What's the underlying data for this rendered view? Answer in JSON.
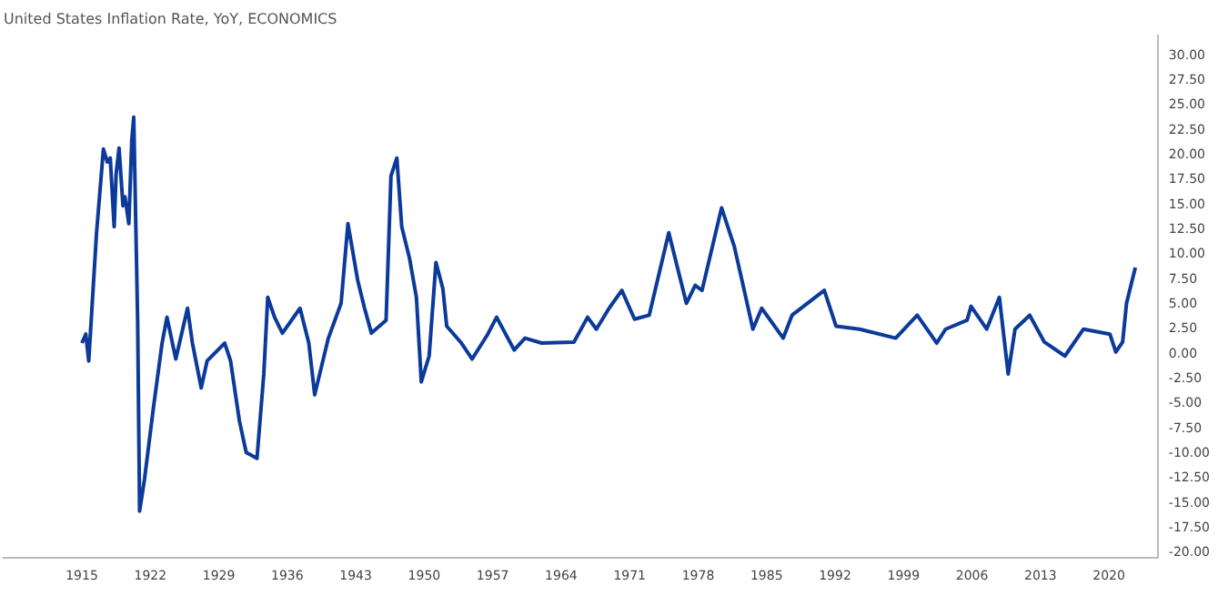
{
  "chart_data": {
    "type": "line",
    "title": "United States Inflation Rate, YoY, ECONOMICS",
    "x": [
      1915,
      1915.4,
      1915.7,
      1916.5,
      1917.2,
      1917.6,
      1917.9,
      1918.3,
      1918.5,
      1918.8,
      1919.2,
      1919.4,
      1919.8,
      1920.1,
      1920.3,
      1920.7,
      1920.9,
      1921.4,
      1922.3,
      1923.2,
      1923.7,
      1924.6,
      1925.8,
      1926.3,
      1927.2,
      1927.8,
      1929.6,
      1930.2,
      1931.1,
      1931.8,
      1932.9,
      1933.6,
      1934,
      1934.7,
      1935.5,
      1937.3,
      1938.2,
      1938.8,
      1940.2,
      1941.5,
      1942.2,
      1943.2,
      1943.9,
      1944.6,
      1946.1,
      1946.6,
      1947.2,
      1947.7,
      1948.5,
      1949.2,
      1949.7,
      1950.5,
      1951.2,
      1951.9,
      1952.3,
      1953.8,
      1954.9,
      1956.5,
      1957.4,
      1959.2,
      1960.3,
      1962,
      1965.3,
      1966.7,
      1967.6,
      1968.9,
      1970.2,
      1971.5,
      1973,
      1975,
      1976.8,
      1977.7,
      1978.4,
      1980.4,
      1981.7,
      1982.6,
      1983.6,
      1984.5,
      1986.7,
      1987.6,
      1990.9,
      1992.1,
      1994.5,
      1998.2,
      2000.4,
      2002.4,
      2003.3,
      2005.5,
      2005.9,
      2007.5,
      2008.8,
      2009.7,
      2010.4,
      2011.9,
      2013.4,
      2015.5,
      2017.4,
      2020.1,
      2020.7,
      2021.4,
      2021.8,
      2022.7
    ],
    "series": [
      {
        "color": "#0b3a9a",
        "values": [
          1.1,
          2,
          -0.7,
          12.2,
          20.6,
          19.3,
          19.7,
          12.8,
          18.1,
          20.7,
          14.9,
          15.8,
          13.1,
          21.5,
          23.8,
          3.4,
          -15.8,
          -12.6,
          -5.5,
          1.1,
          3.7,
          -0.5,
          4.6,
          1.1,
          -3.4,
          -0.7,
          1.1,
          -0.7,
          -6.7,
          -9.9,
          -10.5,
          -2,
          5.7,
          3.7,
          2.1,
          4.6,
          1.1,
          -4.1,
          1.6,
          5.1,
          13.1,
          7.4,
          4.6,
          2.1,
          3.4,
          17.9,
          19.7,
          12.8,
          9.6,
          5.7,
          -2.8,
          -0.2,
          9.2,
          6.6,
          2.8,
          1.1,
          -0.5,
          2,
          3.7,
          0.4,
          1.6,
          1.1,
          1.2,
          3.7,
          2.5,
          4.6,
          6.4,
          3.5,
          3.9,
          12.2,
          5.1,
          6.9,
          6.4,
          14.7,
          10.8,
          6.9,
          2.5,
          4.6,
          1.6,
          3.9,
          6.4,
          2.8,
          2.5,
          1.6,
          3.9,
          1.1,
          2.5,
          3.4,
          4.8,
          2.5,
          5.7,
          -2,
          2.5,
          3.9,
          1.2,
          -0.2,
          2.5,
          2,
          0.2,
          1.2,
          5.1,
          8.7
        ]
      }
    ],
    "xlim": [
      1907,
      2025
    ],
    "ylim": [
      -20.5,
      32
    ],
    "xticks": [
      1915,
      1922,
      1929,
      1936,
      1943,
      1950,
      1957,
      1964,
      1971,
      1978,
      1985,
      1992,
      1999,
      2006,
      2013,
      2020
    ],
    "yticks": [
      {
        "value": 30,
        "label": "30.00"
      },
      {
        "value": 27.5,
        "label": "27.50"
      },
      {
        "value": 25,
        "label": "25.00"
      },
      {
        "value": 22.5,
        "label": "22.50"
      },
      {
        "value": 20,
        "label": "20.00"
      },
      {
        "value": 17.5,
        "label": "17.50"
      },
      {
        "value": 15,
        "label": "15.00"
      },
      {
        "value": 12.5,
        "label": "12.50"
      },
      {
        "value": 10,
        "label": "10.00"
      },
      {
        "value": 7.5,
        "label": "7.50"
      },
      {
        "value": 5,
        "label": "5.00"
      },
      {
        "value": 2.5,
        "label": "2.50"
      },
      {
        "value": 0,
        "label": "0.00"
      },
      {
        "value": -2.5,
        "label": "-2.50"
      },
      {
        "value": -5,
        "label": "-5.00"
      },
      {
        "value": -7.5,
        "label": "-7.50"
      },
      {
        "value": -10,
        "label": "-10.00"
      },
      {
        "value": -12.5,
        "label": "-12.50"
      },
      {
        "value": -15,
        "label": "-15.00"
      },
      {
        "value": -17.5,
        "label": "-17.50"
      },
      {
        "value": -20,
        "label": "-20.00"
      }
    ],
    "grid": false,
    "legend": false,
    "marker": "none",
    "line_style": "solid"
  }
}
